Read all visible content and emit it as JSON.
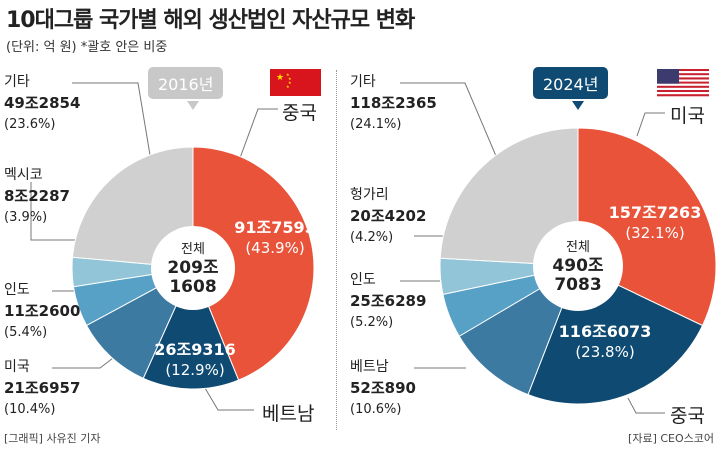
{
  "title": "10대그룹 국가별 해외 생산법인 자산규모 변화",
  "subtitle": "(단위: 억 원) *괄호 안은 비중",
  "credit": "[그래픽] 사유진 기자",
  "source": "[자료] CEO스코어",
  "chart_data": [
    {
      "type": "pie",
      "title": "2016년",
      "badge_color": "#c8c8c8",
      "flag": "china-flag-icon",
      "total_label": "전체",
      "total": [
        "209조",
        "1608"
      ],
      "slices": [
        {
          "name": "중국",
          "value": "91조7595",
          "pct": 43.9,
          "pct_label": "(43.9%)",
          "color": "#e8533a"
        },
        {
          "name": "베트남",
          "value": "26조9316",
          "pct": 12.9,
          "pct_label": "(12.9%)",
          "color": "#0f4a72"
        },
        {
          "name": "미국",
          "value": "21조6957",
          "pct": 10.4,
          "pct_label": "(10.4%)",
          "color": "#3c7aa2"
        },
        {
          "name": "인도",
          "value": "11조2600",
          "pct": 5.4,
          "pct_label": "(5.4%)",
          "color": "#57a0c6"
        },
        {
          "name": "멕시코",
          "value": "8조2287",
          "pct": 3.9,
          "pct_label": "(3.9%)",
          "color": "#92c5d8"
        },
        {
          "name": "기타",
          "value": "49조2854",
          "pct": 23.6,
          "pct_label": "(23.6%)",
          "color": "#d0d0d0"
        }
      ]
    },
    {
      "type": "pie",
      "title": "2024년",
      "badge_color": "#0f4a72",
      "flag": "usa-flag-icon",
      "total_label": "전체",
      "total": [
        "490조",
        "7083"
      ],
      "slices": [
        {
          "name": "미국",
          "value": "157조7263",
          "pct": 32.1,
          "pct_label": "(32.1%)",
          "color": "#e8533a"
        },
        {
          "name": "중국",
          "value": "116조6073",
          "pct": 23.8,
          "pct_label": "(23.8%)",
          "color": "#0f4a72"
        },
        {
          "name": "베트남",
          "value": "52조890",
          "pct": 10.6,
          "pct_label": "(10.6%)",
          "color": "#3c7aa2"
        },
        {
          "name": "인도",
          "value": "25조6289",
          "pct": 5.2,
          "pct_label": "(5.2%)",
          "color": "#57a0c6"
        },
        {
          "name": "헝가리",
          "value": "20조4202",
          "pct": 4.2,
          "pct_label": "(4.2%)",
          "color": "#92c5d8"
        },
        {
          "name": "기타",
          "value": "118조2365",
          "pct": 24.1,
          "pct_label": "(24.1%)",
          "color": "#d0d0d0"
        }
      ]
    }
  ]
}
